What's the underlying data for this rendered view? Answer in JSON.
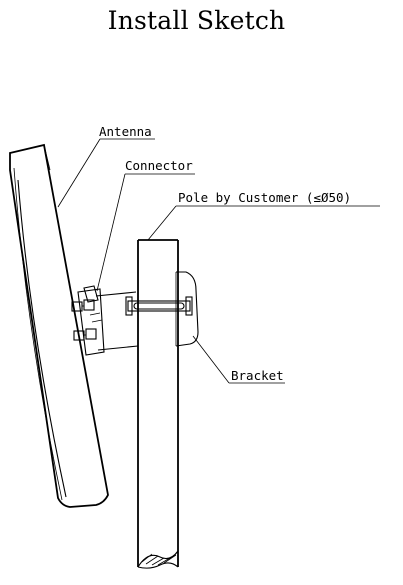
{
  "title": "Install Sketch",
  "labels": {
    "antenna": "Antenna",
    "connector": "Connector",
    "pole": "Pole by Customer (≤Ø50)",
    "bracket": "Bracket"
  }
}
